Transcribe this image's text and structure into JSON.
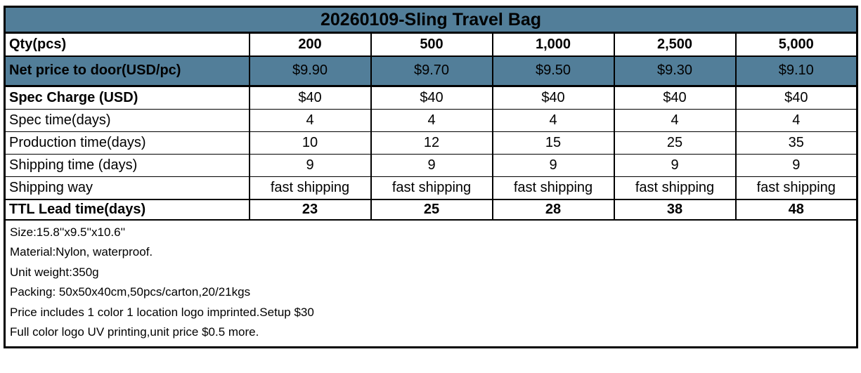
{
  "colors": {
    "accent_bg": "#527e99",
    "border": "#000000",
    "text": "#000000",
    "background": "#ffffff"
  },
  "table": {
    "title": "20260109-Sling Travel Bag",
    "rows": [
      {
        "label": "Qty(pcs)",
        "values": [
          "200",
          "500",
          "1,000",
          "2,500",
          "5,000"
        ]
      },
      {
        "label": "Net price to door(USD/pc)",
        "values": [
          "$9.90",
          "$9.70",
          "$9.50",
          "$9.30",
          "$9.10"
        ]
      },
      {
        "label": "Spec Charge (USD)",
        "values": [
          "$40",
          "$40",
          "$40",
          "$40",
          "$40"
        ]
      },
      {
        "label": "Spec time(days)",
        "values": [
          "4",
          "4",
          "4",
          "4",
          "4"
        ]
      },
      {
        "label": "Production time(days)",
        "values": [
          "10",
          "12",
          "15",
          "25",
          "35"
        ]
      },
      {
        "label": "Shipping time (days)",
        "values": [
          "9",
          "9",
          "9",
          "9",
          "9"
        ]
      },
      {
        "label": "Shipping way",
        "values": [
          "fast shipping",
          "fast shipping",
          "fast shipping",
          "fast shipping",
          "fast shipping"
        ]
      },
      {
        "label": "TTL Lead time(days)",
        "values": [
          "23",
          "25",
          "28",
          "38",
          "48"
        ]
      }
    ],
    "notes": [
      "Size:15.8''x9.5''x10.6''",
      "Material:Nylon, waterproof.",
      "Unit weight:350g",
      "Packing: 50x50x40cm,50pcs/carton,20/21kgs",
      "Price includes 1 color 1 location logo imprinted.Setup $30",
      "Full color logo UV printing,unit price $0.5 more."
    ]
  }
}
